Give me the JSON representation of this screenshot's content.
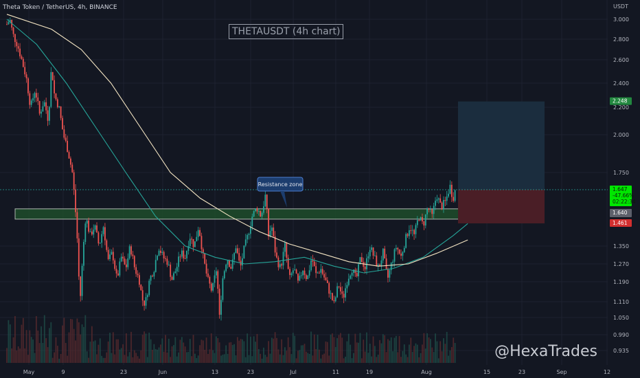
{
  "header": {
    "symbol_line": "Theta Token / TetherUS, 4h, BINANCE"
  },
  "chart_title": "THETAUSDT (4h chart)",
  "watermark": "@HexaTrades",
  "annotation": {
    "text": "Resistance zone"
  },
  "axis": {
    "currency": "USDT",
    "y_ticks": [
      "3.000",
      "2.800",
      "2.600",
      "2.400",
      "2.200",
      "2.000",
      "1.750",
      "1.350",
      "1.270",
      "1.190",
      "1.110",
      "1.050",
      "0.990",
      "0.935"
    ],
    "x_ticks": [
      "May",
      "9",
      "23",
      "Jun",
      "13",
      "23",
      "Jul",
      "11",
      "19",
      "Aug",
      "15",
      "23",
      "Sep",
      "12"
    ]
  },
  "price_labels": {
    "target": "2.248",
    "current": "1.647",
    "change": "-47.66%",
    "countdown": "02:22:34",
    "zone": "1.640",
    "stop": "1.461"
  },
  "colors": {
    "background": "#131722",
    "up": "#26a69a",
    "down": "#ef5350",
    "ma_fast": "#26a69a",
    "ma_slow": "#f5e6c4",
    "zone_fill": "#1e4d2b",
    "target_fill": "#1b2d3e",
    "stop_fill": "#4a1e26"
  },
  "chart_data": {
    "type": "candlestick",
    "title": "THETAUSDT (4h chart)",
    "ylabel": "USDT",
    "y_ticks": [
      3.0,
      2.8,
      2.6,
      2.4,
      2.2,
      2.0,
      1.75,
      1.35,
      1.27,
      1.19,
      1.11,
      1.05,
      0.99,
      0.935
    ],
    "x_ticks": [
      "May",
      "9",
      "23",
      "Jun",
      "13",
      "23",
      "Jul",
      "11",
      "19",
      "Aug",
      "15",
      "23",
      "Sep",
      "12"
    ],
    "path_points": [
      [
        0,
        2.95
      ],
      [
        4,
        3.0
      ],
      [
        8,
        2.85
      ],
      [
        14,
        2.75
      ],
      [
        20,
        2.6
      ],
      [
        26,
        2.45
      ],
      [
        32,
        2.2
      ],
      [
        38,
        2.35
      ],
      [
        44,
        2.15
      ],
      [
        50,
        2.25
      ],
      [
        56,
        2.1
      ],
      [
        60,
        2.55
      ],
      [
        64,
        2.3
      ],
      [
        70,
        2.2
      ],
      [
        76,
        2.0
      ],
      [
        82,
        1.9
      ],
      [
        88,
        1.75
      ],
      [
        92,
        1.55
      ],
      [
        96,
        1.3
      ],
      [
        98,
        1.08
      ],
      [
        102,
        1.3
      ],
      [
        106,
        1.5
      ],
      [
        112,
        1.4
      ],
      [
        118,
        1.45
      ],
      [
        124,
        1.35
      ],
      [
        130,
        1.45
      ],
      [
        136,
        1.28
      ],
      [
        142,
        1.32
      ],
      [
        148,
        1.2
      ],
      [
        154,
        1.3
      ],
      [
        160,
        1.25
      ],
      [
        166,
        1.35
      ],
      [
        172,
        1.25
      ],
      [
        178,
        1.2
      ],
      [
        182,
        1.12
      ],
      [
        186,
        1.1
      ],
      [
        192,
        1.2
      ],
      [
        198,
        1.25
      ],
      [
        204,
        1.35
      ],
      [
        210,
        1.3
      ],
      [
        216,
        1.28
      ],
      [
        222,
        1.2
      ],
      [
        228,
        1.25
      ],
      [
        234,
        1.32
      ],
      [
        240,
        1.3
      ],
      [
        246,
        1.4
      ],
      [
        252,
        1.35
      ],
      [
        258,
        1.45
      ],
      [
        264,
        1.3
      ],
      [
        270,
        1.2
      ],
      [
        276,
        1.15
      ],
      [
        282,
        1.25
      ],
      [
        286,
        1.05
      ],
      [
        290,
        1.2
      ],
      [
        296,
        1.3
      ],
      [
        302,
        1.25
      ],
      [
        308,
        1.35
      ],
      [
        314,
        1.25
      ],
      [
        318,
        1.32
      ],
      [
        324,
        1.4
      ],
      [
        330,
        1.5
      ],
      [
        336,
        1.55
      ],
      [
        342,
        1.5
      ],
      [
        348,
        1.62
      ],
      [
        352,
        1.4
      ],
      [
        356,
        1.45
      ],
      [
        362,
        1.3
      ],
      [
        368,
        1.25
      ],
      [
        374,
        1.35
      ],
      [
        380,
        1.2
      ],
      [
        386,
        1.25
      ],
      [
        392,
        1.18
      ],
      [
        398,
        1.25
      ],
      [
        404,
        1.2
      ],
      [
        410,
        1.3
      ],
      [
        416,
        1.22
      ],
      [
        422,
        1.25
      ],
      [
        428,
        1.2
      ],
      [
        434,
        1.15
      ],
      [
        440,
        1.1
      ],
      [
        446,
        1.18
      ],
      [
        452,
        1.12
      ],
      [
        458,
        1.2
      ],
      [
        464,
        1.25
      ],
      [
        470,
        1.2
      ],
      [
        476,
        1.3
      ],
      [
        482,
        1.25
      ],
      [
        488,
        1.35
      ],
      [
        494,
        1.3
      ],
      [
        500,
        1.25
      ],
      [
        506,
        1.32
      ],
      [
        512,
        1.2
      ],
      [
        518,
        1.28
      ],
      [
        524,
        1.35
      ],
      [
        530,
        1.3
      ],
      [
        536,
        1.38
      ],
      [
        542,
        1.45
      ],
      [
        548,
        1.4
      ],
      [
        554,
        1.5
      ],
      [
        560,
        1.45
      ],
      [
        566,
        1.55
      ],
      [
        572,
        1.5
      ],
      [
        578,
        1.62
      ],
      [
        584,
        1.55
      ],
      [
        590,
        1.58
      ],
      [
        596,
        1.67
      ],
      [
        600,
        1.6
      ],
      [
        605,
        1.67
      ]
    ],
    "ma_fast_points": [
      [
        0,
        3.0
      ],
      [
        40,
        2.75
      ],
      [
        80,
        2.4
      ],
      [
        120,
        2.05
      ],
      [
        160,
        1.75
      ],
      [
        200,
        1.5
      ],
      [
        240,
        1.35
      ],
      [
        280,
        1.3
      ],
      [
        320,
        1.27
      ],
      [
        360,
        1.28
      ],
      [
        400,
        1.3
      ],
      [
        440,
        1.26
      ],
      [
        480,
        1.23
      ],
      [
        520,
        1.25
      ],
      [
        560,
        1.3
      ],
      [
        600,
        1.4
      ],
      [
        620,
        1.46
      ]
    ],
    "ma_slow_points": [
      [
        0,
        3.05
      ],
      [
        60,
        2.9
      ],
      [
        100,
        2.7
      ],
      [
        140,
        2.4
      ],
      [
        180,
        2.05
      ],
      [
        220,
        1.75
      ],
      [
        260,
        1.6
      ],
      [
        300,
        1.5
      ],
      [
        340,
        1.42
      ],
      [
        380,
        1.36
      ],
      [
        420,
        1.32
      ],
      [
        460,
        1.28
      ],
      [
        500,
        1.26
      ],
      [
        540,
        1.27
      ],
      [
        580,
        1.32
      ],
      [
        620,
        1.38
      ]
    ],
    "resistance_zone": {
      "low": 1.575,
      "high": 1.64
    },
    "position": {
      "entry": 1.647,
      "target": 2.248,
      "stop": 1.461
    }
  }
}
